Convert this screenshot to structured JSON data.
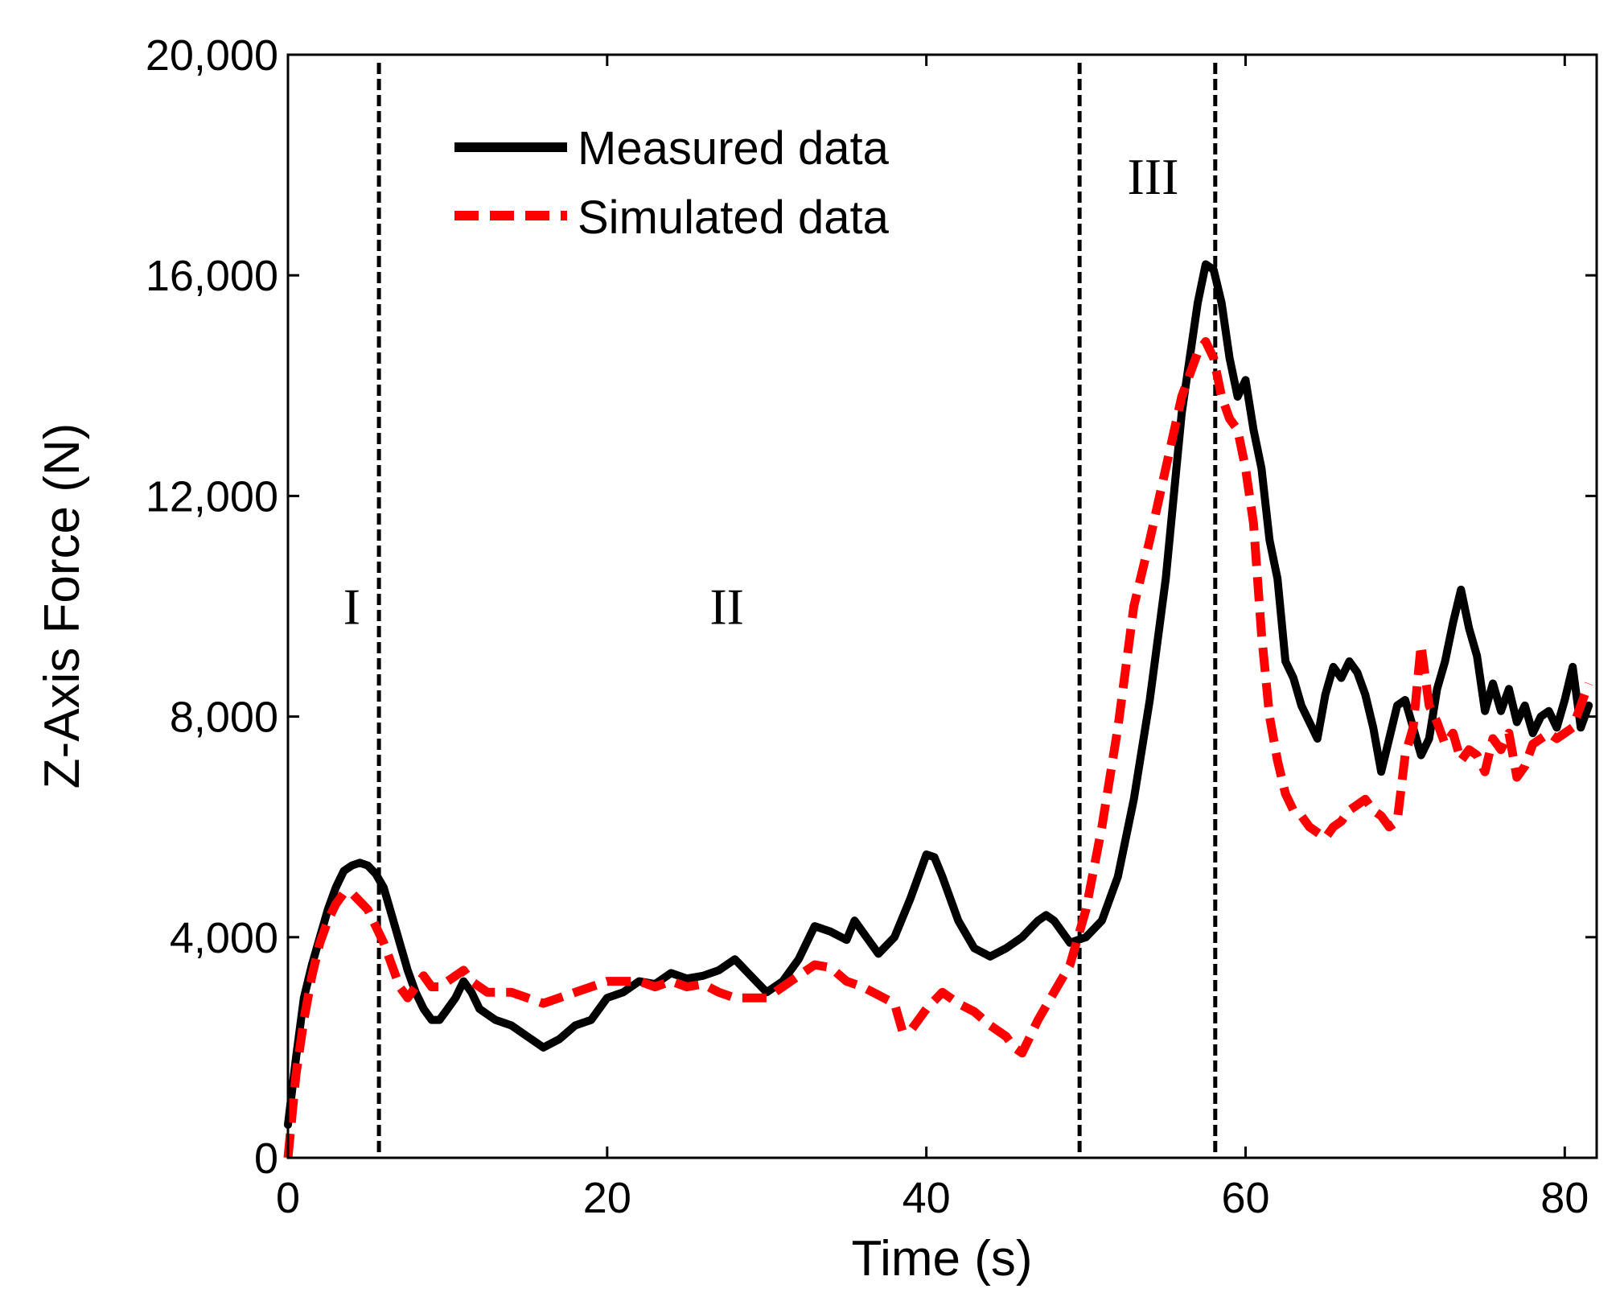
{
  "chart_data": {
    "type": "line",
    "title": "",
    "xlabel": "Time (s)",
    "ylabel": "Z-Axis Force (N)",
    "xlim": [
      0,
      82
    ],
    "ylim": [
      0,
      20000
    ],
    "x_ticks": [
      0,
      20,
      40,
      60,
      80
    ],
    "x_tick_labels": [
      "0",
      "20",
      "40",
      "60",
      "80"
    ],
    "y_ticks": [
      0,
      4000,
      8000,
      12000,
      16000,
      20000
    ],
    "y_tick_labels": [
      "0",
      "4,000",
      "8,000",
      "12,000",
      "16,000",
      "20,000"
    ],
    "grid": false,
    "legend_position": "top-left",
    "vertical_lines": [
      5.7,
      49.6,
      58.1
    ],
    "regions": [
      {
        "label": "I",
        "x": 4,
        "y": 10000
      },
      {
        "label": "II",
        "x": 27.5,
        "y": 10000
      },
      {
        "label": "III",
        "x": 54.2,
        "y": 17800
      }
    ],
    "series": [
      {
        "name": "Measured data",
        "color": "#000000",
        "style": "solid",
        "x": [
          0,
          0.5,
          1,
          1.5,
          2,
          2.5,
          3,
          3.5,
          4,
          4.5,
          5,
          5.5,
          6,
          6.5,
          7,
          7.5,
          8,
          8.5,
          9,
          9.5,
          10,
          10.5,
          11,
          11.5,
          12,
          12.5,
          13,
          14,
          15,
          16,
          17,
          18,
          19,
          20,
          21,
          22,
          23,
          24,
          25,
          26,
          27,
          28,
          29,
          30,
          31,
          32,
          33,
          34,
          35,
          35.5,
          36,
          37,
          38,
          39,
          40,
          40.5,
          41,
          42,
          43,
          44,
          45,
          46,
          47,
          47.5,
          48,
          49,
          50,
          51,
          52,
          53,
          54,
          55,
          56,
          57,
          57.5,
          58,
          58.5,
          59,
          59.5,
          60,
          60.5,
          61,
          61.5,
          62,
          62.5,
          63,
          63.5,
          64,
          64.5,
          65,
          65.5,
          66,
          66.5,
          67,
          67.5,
          68,
          68.5,
          69,
          69.5,
          70,
          70.5,
          71,
          71.5,
          72,
          72.5,
          73,
          73.5,
          74,
          74.5,
          75,
          75.5,
          76,
          76.5,
          77,
          77.5,
          78,
          78.5,
          79,
          79.5,
          80,
          80.5,
          81,
          81.5
        ],
        "values": [
          600,
          1800,
          2900,
          3500,
          4000,
          4500,
          4900,
          5200,
          5300,
          5350,
          5300,
          5150,
          4900,
          4400,
          3900,
          3400,
          3000,
          2700,
          2500,
          2500,
          2700,
          2900,
          3200,
          3000,
          2700,
          2600,
          2500,
          2400,
          2200,
          2000,
          2150,
          2400,
          2500,
          2900,
          3000,
          3200,
          3150,
          3350,
          3250,
          3300,
          3400,
          3600,
          3300,
          3000,
          3200,
          3600,
          4200,
          4100,
          3950,
          4300,
          4100,
          3700,
          4000,
          4700,
          5500,
          5450,
          5100,
          4300,
          3800,
          3650,
          3800,
          4000,
          4300,
          4400,
          4300,
          3900,
          4000,
          4300,
          5100,
          6500,
          8300,
          10500,
          13500,
          15500,
          16200,
          16100,
          15500,
          14500,
          13800,
          14100,
          13200,
          12500,
          11200,
          10500,
          9000,
          8700,
          8200,
          7900,
          7600,
          8400,
          8900,
          8700,
          9000,
          8800,
          8400,
          7800,
          7000,
          7600,
          8200,
          8300,
          7800,
          7300,
          7600,
          8500,
          9000,
          9700,
          10300,
          9600,
          9100,
          8100,
          8600,
          8100,
          8500,
          7900,
          8200,
          7700,
          8000,
          8100,
          7800,
          8300,
          8900,
          7800,
          8200
        ]
      },
      {
        "name": "Simulated data",
        "color": "#ff0000",
        "style": "dashed",
        "x": [
          0,
          0.5,
          1,
          1.5,
          2,
          2.5,
          3,
          3.5,
          4,
          4.5,
          5,
          5.5,
          6,
          6.5,
          7,
          7.5,
          8,
          8.5,
          9,
          9.5,
          10,
          10.5,
          11,
          11.5,
          12,
          12.5,
          13,
          14,
          15,
          16,
          17,
          18,
          19,
          20,
          21,
          22,
          23,
          24,
          25,
          26,
          27,
          28,
          29,
          30,
          31,
          32,
          33,
          34,
          35,
          36,
          37,
          38,
          38.5,
          39,
          40,
          41,
          42,
          43,
          44,
          45,
          45.5,
          46,
          47,
          48,
          49,
          50,
          51,
          52,
          53,
          54,
          55,
          56,
          57,
          57.5,
          58,
          58.5,
          59,
          59.5,
          60,
          60.5,
          61,
          61.5,
          62,
          62.5,
          63,
          63.5,
          64,
          64.5,
          65,
          65.5,
          66,
          66.5,
          67,
          67.5,
          68,
          68.5,
          69,
          69.5,
          70,
          70.5,
          71,
          71.5,
          72,
          72.5,
          73,
          73.5,
          74,
          74.5,
          75,
          75.5,
          76,
          76.5,
          77,
          77.5,
          78,
          78.5,
          79,
          79.5,
          80,
          80.5,
          81,
          81.5
        ],
        "values": [
          0,
          1500,
          2500,
          3300,
          3900,
          4300,
          4600,
          4800,
          4800,
          4650,
          4500,
          4200,
          3900,
          3500,
          3100,
          2900,
          3100,
          3300,
          3100,
          3100,
          3200,
          3300,
          3400,
          3200,
          3100,
          3000,
          3000,
          3000,
          2900,
          2800,
          2900,
          3000,
          3100,
          3200,
          3200,
          3200,
          3100,
          3200,
          3100,
          3150,
          3000,
          2900,
          2900,
          2900,
          3100,
          3300,
          3500,
          3450,
          3200,
          3100,
          2950,
          2800,
          2300,
          2300,
          2700,
          3000,
          2800,
          2650,
          2400,
          2200,
          2000,
          1900,
          2500,
          3000,
          3500,
          4500,
          6000,
          7800,
          10000,
          11200,
          12500,
          13800,
          14600,
          14800,
          14500,
          13800,
          13400,
          13200,
          12500,
          11500,
          9500,
          8000,
          7200,
          6600,
          6300,
          6200,
          6000,
          5900,
          5800,
          6000,
          6100,
          6300,
          6400,
          6500,
          6300,
          6200,
          6000,
          6100,
          7300,
          7800,
          9300,
          8200,
          7900,
          7500,
          7700,
          7200,
          7400,
          7300,
          7000,
          7600,
          7400,
          7700,
          6900,
          7100,
          7500,
          7600,
          7700,
          7600,
          7700,
          7800,
          8200,
          8600
        ]
      }
    ]
  }
}
